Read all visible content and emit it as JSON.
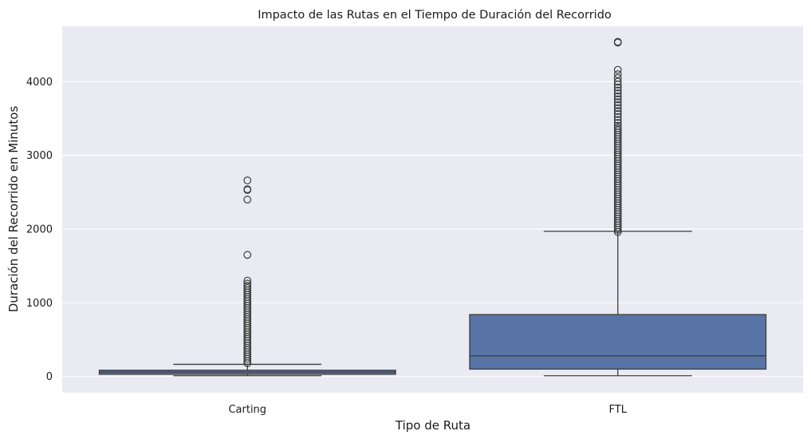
{
  "chart_data": {
    "type": "box",
    "title": "Impacto de las Rutas en el Tiempo de Duración del Recorrido",
    "xlabel": "Tipo de Ruta",
    "ylabel": "Duración del Recorrido en Minutos",
    "categories": [
      "Carting",
      "FTL"
    ],
    "ylim": [
      -220,
      4750
    ],
    "yticks": [
      0,
      1000,
      2000,
      3000,
      4000
    ],
    "grid": true,
    "box_color": "#5874a6",
    "edge_color": "#3d3d3d",
    "background_color": "#eaeaf2",
    "series": [
      {
        "category": "Carting",
        "whisker_low": 10,
        "q1": 30,
        "median": 60,
        "q3": 85,
        "whisker_high": 165,
        "outliers": [
          180,
          210,
          240,
          270,
          300,
          330,
          360,
          390,
          420,
          450,
          480,
          510,
          540,
          570,
          600,
          630,
          660,
          690,
          720,
          750,
          780,
          810,
          840,
          870,
          900,
          930,
          960,
          990,
          1020,
          1050,
          1080,
          1110,
          1140,
          1170,
          1200,
          1230,
          1260,
          1300,
          1650,
          2400,
          2530,
          2540,
          2660
        ]
      },
      {
        "category": "FTL",
        "whisker_low": 10,
        "q1": 100,
        "median": 280,
        "q3": 840,
        "whisker_high": 1970,
        "outliers": [
          1960,
          1990,
          2020,
          2050,
          2080,
          2110,
          2140,
          2170,
          2200,
          2230,
          2260,
          2290,
          2320,
          2350,
          2380,
          2410,
          2440,
          2470,
          2500,
          2530,
          2560,
          2590,
          2620,
          2650,
          2680,
          2710,
          2740,
          2770,
          2800,
          2830,
          2860,
          2890,
          2920,
          2950,
          2980,
          3010,
          3040,
          3070,
          3100,
          3130,
          3160,
          3190,
          3220,
          3250,
          3280,
          3310,
          3340,
          3370,
          3400,
          3440,
          3480,
          3520,
          3560,
          3600,
          3640,
          3680,
          3720,
          3760,
          3800,
          3840,
          3880,
          3920,
          3960,
          4000,
          4050,
          4100,
          4160,
          4530,
          4540
        ]
      }
    ]
  }
}
